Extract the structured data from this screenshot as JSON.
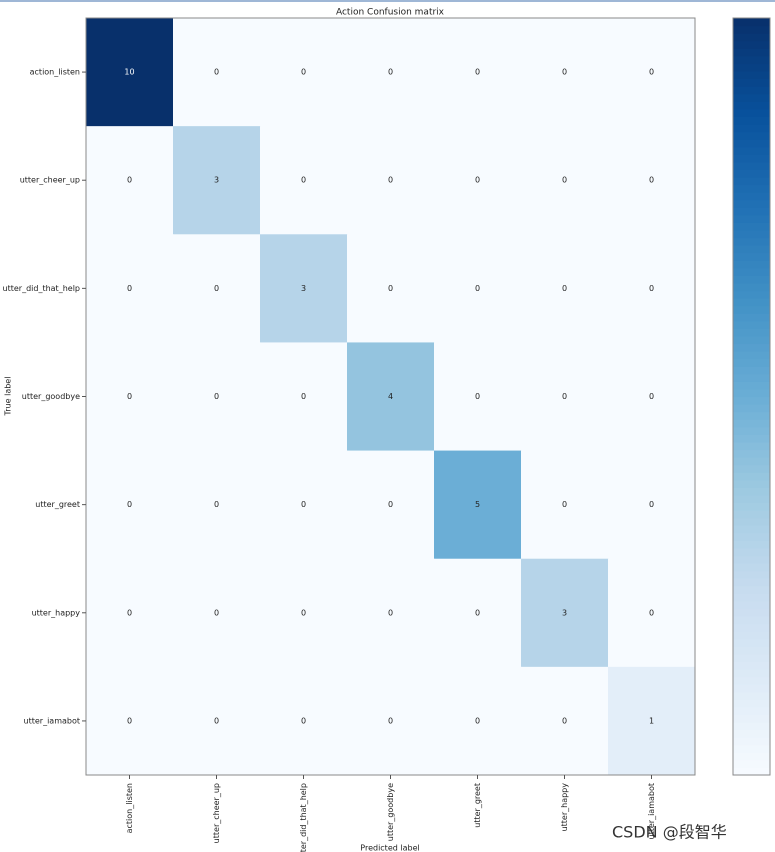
{
  "chart_data": {
    "type": "heatmap",
    "title": "Action Confusion matrix",
    "x_label": "Predicted label",
    "y_label": "True label",
    "x_categories": [
      "action_listen",
      "utter_cheer_up",
      "utter_did_that_help",
      "utter_goodbye",
      "utter_greet",
      "utter_happy",
      "utter_iamabot"
    ],
    "y_categories": [
      "action_listen",
      "utter_cheer_up",
      "utter_did_that_help",
      "utter_goodbye",
      "utter_greet",
      "utter_happy",
      "utter_iamabot"
    ],
    "z": [
      [
        10,
        0,
        0,
        0,
        0,
        0,
        0
      ],
      [
        0,
        3,
        0,
        0,
        0,
        0,
        0
      ],
      [
        0,
        0,
        3,
        0,
        0,
        0,
        0
      ],
      [
        0,
        0,
        0,
        4,
        0,
        0,
        0
      ],
      [
        0,
        0,
        0,
        0,
        5,
        0,
        0
      ],
      [
        0,
        0,
        0,
        0,
        0,
        3,
        0
      ],
      [
        0,
        0,
        0,
        0,
        0,
        0,
        1
      ]
    ],
    "zlim": [
      0,
      10
    ],
    "colormap": "Blues"
  },
  "watermark": "CSDN @段智华"
}
